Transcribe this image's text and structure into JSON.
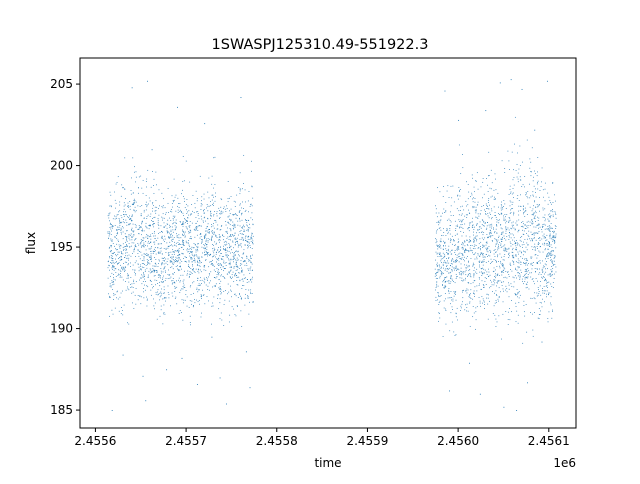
{
  "chart_data": {
    "type": "scatter",
    "title": "1SWASPJ125310.49-551922.3",
    "xlabel": "time",
    "ylabel": "flux",
    "x_offset_label": "1e6",
    "xlim": [
      2455583,
      2456130
    ],
    "ylim": [
      183.9,
      206.6
    ],
    "x_ticks": [
      2455600,
      2455700,
      2455800,
      2455900,
      2456000,
      2456100
    ],
    "x_tick_labels": [
      "2.4556",
      "2.4557",
      "2.4558",
      "2.4559",
      "2.4560",
      "2.4561"
    ],
    "y_ticks": [
      185,
      190,
      195,
      200,
      205
    ],
    "y_tick_labels": [
      "185",
      "190",
      "195",
      "200",
      "205"
    ],
    "grid": false,
    "marker_color": "#1f77b4",
    "series": [
      {
        "x": [
          2455617,
          2455625,
          2455633,
          2455641,
          2455650,
          2455658,
          2455666,
          2455674,
          2455682,
          2455690,
          2455698,
          2455706,
          2455714,
          2455722,
          2455730,
          2455738,
          2455746,
          2455754,
          2455762,
          2455770,
          2455978,
          2455986,
          2455994,
          2456002,
          2456010,
          2456018,
          2456026,
          2456034,
          2456042,
          2456050,
          2456058,
          2456066,
          2456074,
          2456082,
          2456090,
          2456098,
          2456104
        ],
        "y": [
          194.6,
          195.1,
          195.3,
          195.8,
          194.7,
          195.2,
          195.0,
          194.4,
          195.1,
          194.9,
          195.3,
          194.6,
          195.0,
          194.8,
          195.2,
          194.5,
          195.0,
          194.7,
          195.3,
          194.9,
          194.6,
          194.2,
          193.9,
          195.0,
          194.7,
          195.4,
          194.8,
          195.6,
          194.5,
          195.2,
          195.9,
          195.5,
          194.7,
          195.8,
          195.1,
          194.6,
          195.0
        ],
        "spread": [
          2.2,
          2.4,
          2.6,
          2.8,
          2.5,
          2.4,
          2.5,
          2.3,
          2.4,
          2.5,
          2.4,
          2.3,
          2.4,
          2.4,
          2.5,
          2.3,
          2.4,
          2.3,
          2.6,
          2.5,
          2.5,
          2.7,
          2.6,
          2.8,
          2.6,
          2.7,
          2.6,
          2.9,
          2.7,
          2.8,
          3.2,
          3.4,
          3.0,
          3.3,
          3.1,
          2.7,
          2.3
        ]
      }
    ],
    "outliers": [
      [
        2455618,
        185.0
      ],
      [
        2455630,
        188.4
      ],
      [
        2455640,
        204.8
      ],
      [
        2455652,
        187.1
      ],
      [
        2455655,
        185.6
      ],
      [
        2455657,
        205.2
      ],
      [
        2455662,
        201.0
      ],
      [
        2455678,
        187.5
      ],
      [
        2455690,
        203.6
      ],
      [
        2455695,
        188.2
      ],
      [
        2455712,
        186.6
      ],
      [
        2455720,
        202.6
      ],
      [
        2455728,
        189.5
      ],
      [
        2455737,
        187.0
      ],
      [
        2455744,
        185.4
      ],
      [
        2455760,
        204.2
      ],
      [
        2455766,
        188.6
      ],
      [
        2455770,
        186.4
      ],
      [
        2455985,
        204.6
      ],
      [
        2455990,
        186.2
      ],
      [
        2456000,
        202.8
      ],
      [
        2456012,
        187.9
      ],
      [
        2456024,
        186.0
      ],
      [
        2456030,
        203.4
      ],
      [
        2456046,
        205.1
      ],
      [
        2456050,
        185.2
      ],
      [
        2456058,
        205.3
      ],
      [
        2456064,
        185.0
      ],
      [
        2456070,
        204.7
      ],
      [
        2456076,
        186.7
      ],
      [
        2456084,
        202.2
      ],
      [
        2456092,
        189.2
      ],
      [
        2456098,
        205.2
      ]
    ]
  }
}
